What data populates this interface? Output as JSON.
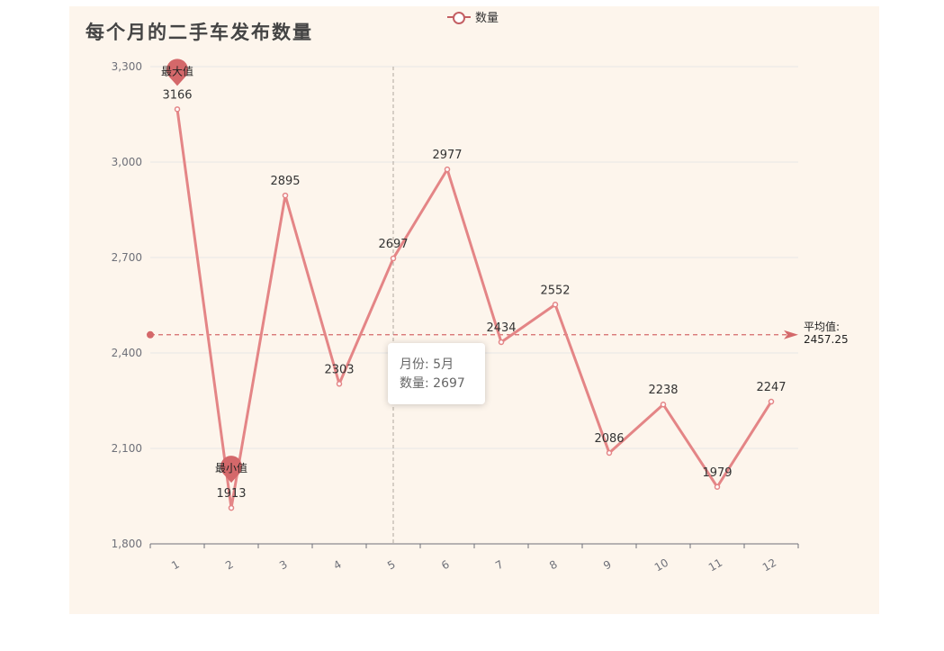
{
  "title": "每个月的二手车发布数量",
  "legend": {
    "series_label": "数量"
  },
  "colors": {
    "line": "#e48586",
    "marker": "#d4686a",
    "background": "#fdf5ec",
    "grid": "#e6e6e6",
    "axis": "#6e7079"
  },
  "tooltip": {
    "month_label": "月份:",
    "month_value": "5月",
    "count_label": "数量:",
    "count_value": "2697"
  },
  "chart_data": {
    "type": "line",
    "title": "每个月的二手车发布数量",
    "categories": [
      "1",
      "2",
      "3",
      "4",
      "5",
      "6",
      "7",
      "8",
      "9",
      "10",
      "11",
      "12"
    ],
    "series": [
      {
        "name": "数量",
        "values": [
          3166,
          1913,
          2895,
          2303,
          2697,
          2977,
          2434,
          2552,
          2086,
          2238,
          1979,
          2247
        ]
      }
    ],
    "ylim": [
      1800,
      3300
    ],
    "yticks": [
      "1,800",
      "2,100",
      "2,400",
      "2,700",
      "3,000",
      "3,300"
    ],
    "ytick_values": [
      1800,
      2100,
      2400,
      2700,
      3000,
      3300
    ],
    "mark_points": [
      {
        "label": "最大值",
        "value": 3166,
        "category": "1"
      },
      {
        "label": "最小值",
        "value": 1913,
        "category": "2"
      }
    ],
    "mark_line": {
      "label": "平均值:",
      "value": 2457.25,
      "value_text": "2457.25"
    },
    "highlighted_category": "5",
    "grid": true,
    "legend_position": "top-center",
    "x_label_rotation": -30
  }
}
